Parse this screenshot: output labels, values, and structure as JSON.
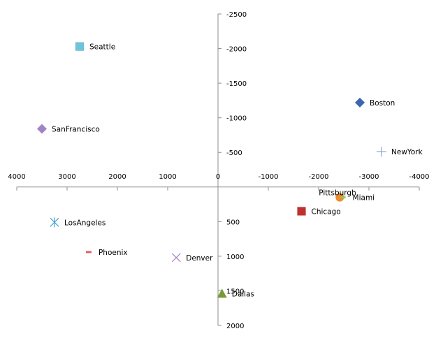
{
  "chart_data": {
    "type": "scatter",
    "title": "",
    "xlabel": "",
    "ylabel": "",
    "xlim": [
      4000,
      -4000
    ],
    "ylim": [
      -2500,
      2000
    ],
    "x_reversed": true,
    "y_reversed": true,
    "grid": false,
    "legend": "none",
    "x_ticks": [
      4000,
      3000,
      2000,
      1000,
      0,
      -1000,
      -2000,
      -3000,
      -4000
    ],
    "x_tick_labels": [
      "4000",
      "3000",
      "2000",
      "1000",
      "0",
      "-1000",
      "-2000",
      "-3000",
      "-4000"
    ],
    "y_ticks": [
      -2500,
      -2000,
      -1500,
      -1000,
      -500,
      500,
      1000,
      1500,
      2000
    ],
    "y_tick_labels": [
      "-2500",
      "-2000",
      "-1500",
      "-1000",
      "-500",
      "500",
      "1000",
      "1500",
      "2000"
    ],
    "series": [
      {
        "label": "Seattle",
        "x": 2750,
        "y": -2030,
        "marker": "square",
        "color": "#6ec3dd"
      },
      {
        "label": "Boston",
        "x": -2820,
        "y": -1220,
        "marker": "diamond",
        "color": "#3d66b1"
      },
      {
        "label": "SanFrancisco",
        "x": 3500,
        "y": -840,
        "marker": "diamond",
        "color": "#a084c4"
      },
      {
        "label": "NewYork",
        "x": -3250,
        "y": -510,
        "marker": "plus",
        "color": "#8ea1dc"
      },
      {
        "label": "Pittsburgh",
        "x": -2420,
        "y": 150,
        "marker": "circle",
        "color": "#f08a2a"
      },
      {
        "label": "Miami",
        "x": -2480,
        "y": 150,
        "marker": "dash",
        "color": "#9bc05a"
      },
      {
        "label": "Chicago",
        "x": -1660,
        "y": 350,
        "marker": "square",
        "color": "#c0302e"
      },
      {
        "label": "LosAngeles",
        "x": 3250,
        "y": 510,
        "marker": "asterisk",
        "color": "#4aa0d0"
      },
      {
        "label": "Phoenix",
        "x": 2570,
        "y": 940,
        "marker": "dash",
        "color": "#e06060"
      },
      {
        "label": "Denver",
        "x": 830,
        "y": 1020,
        "marker": "x",
        "color": "#a47cc8"
      },
      {
        "label": "Dallas",
        "x": -80,
        "y": 1540,
        "marker": "triangle",
        "color": "#7a9a3a"
      }
    ]
  }
}
